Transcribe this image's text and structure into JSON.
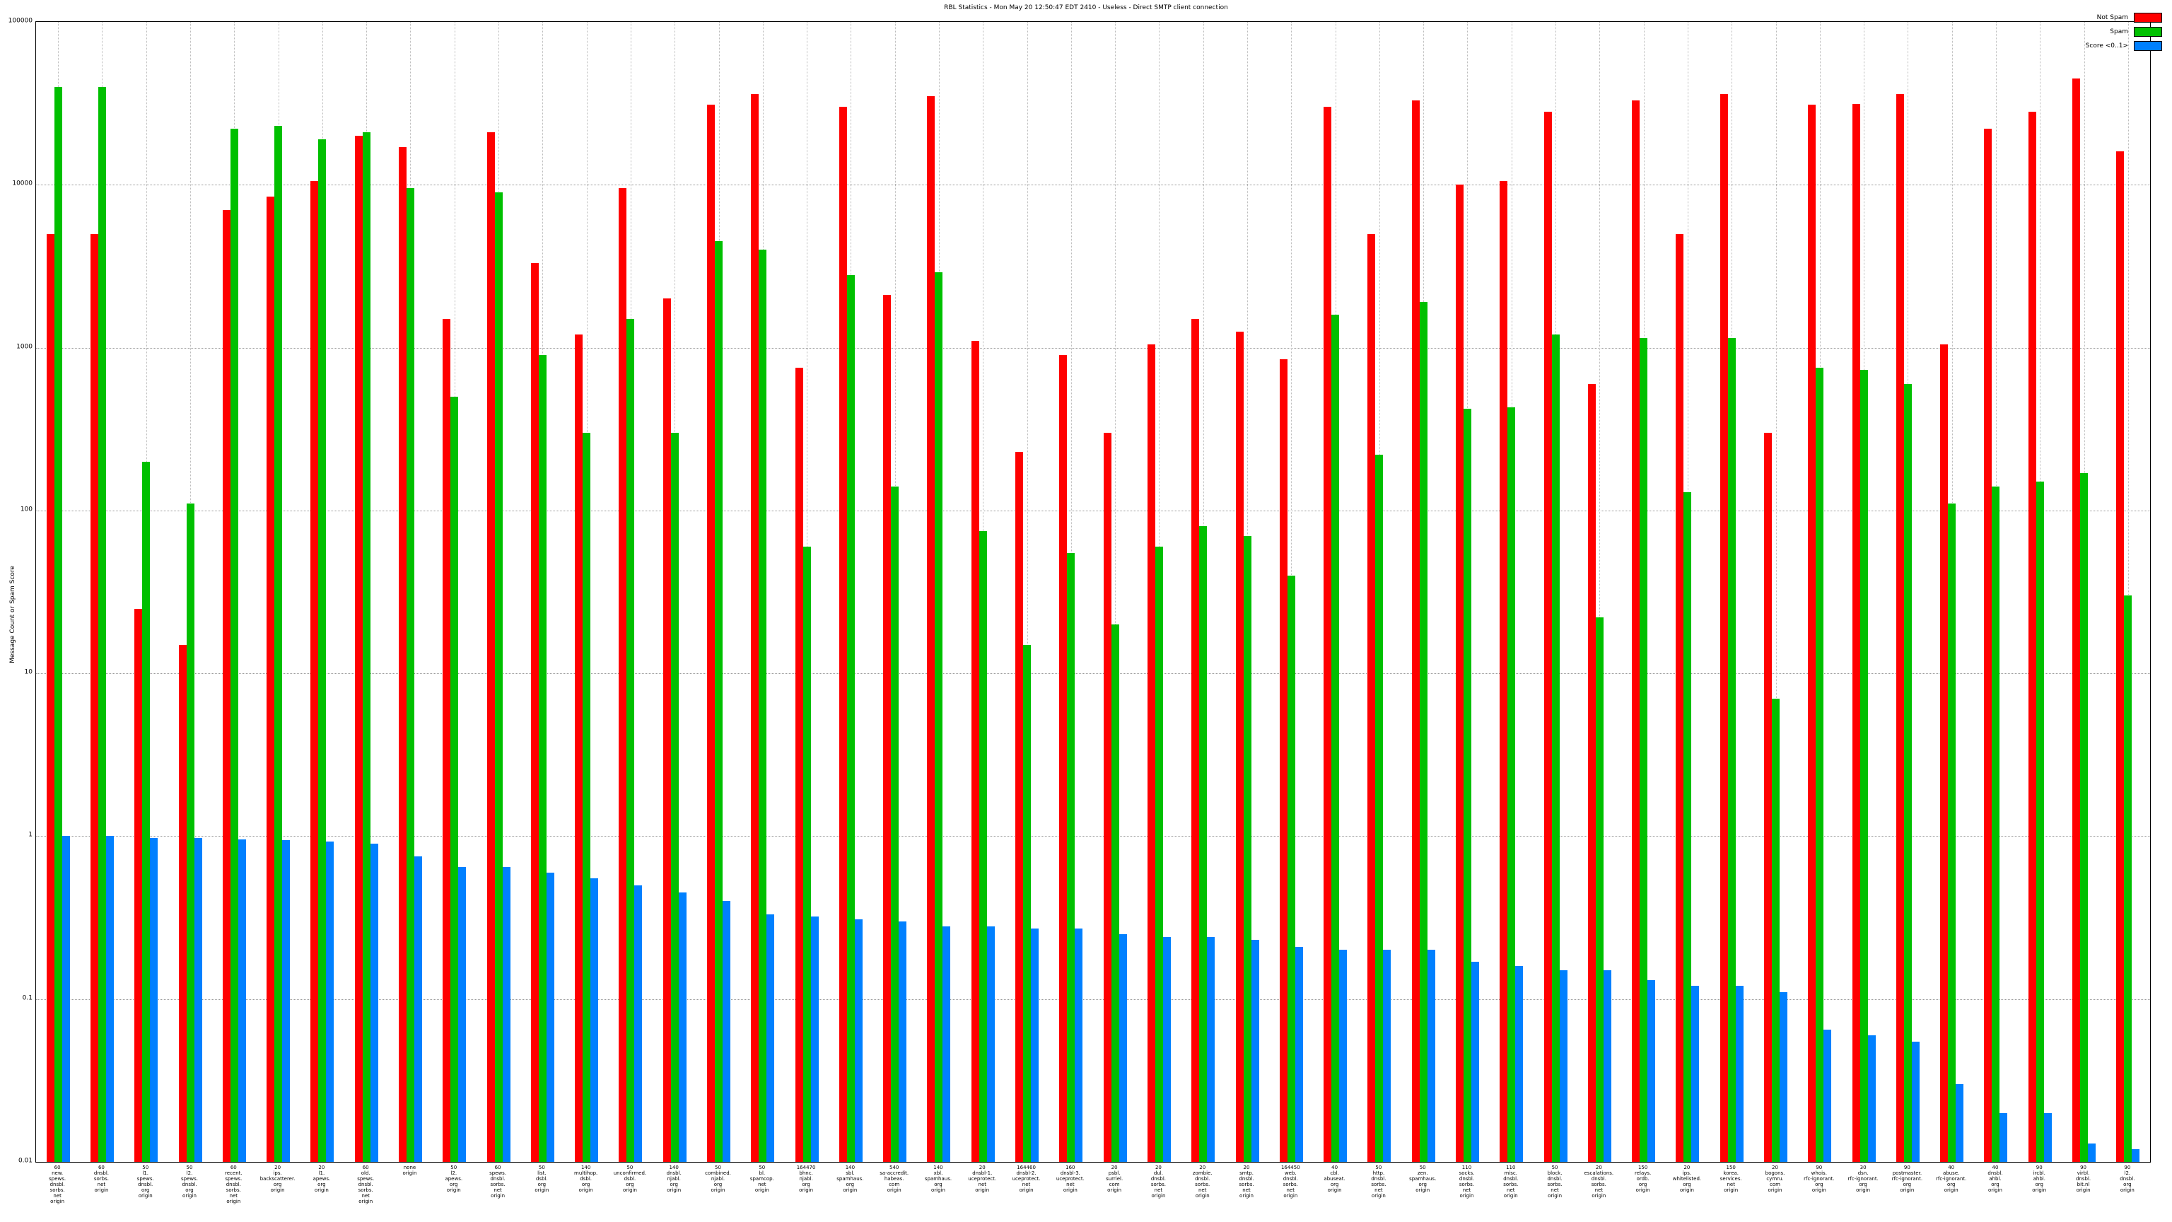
{
  "title": "RBL Statistics - Mon May 20 12:50:47 EDT 2410 - Useless - Direct SMTP client connection",
  "y_axis_label": "Message Count or Spam Score",
  "chart_data": {
    "type": "bar",
    "scale": "log",
    "grid": true,
    "legend_position": "top-right",
    "title": "RBL Statistics - Mon May 20 12:50:47 EDT 2410 - Useless - Direct SMTP client connection",
    "ylabel": "Message Count or Spam Score",
    "ylim": [
      0.01,
      100000
    ],
    "y_ticks": [
      "100000",
      "10000",
      "1000",
      "100",
      "10",
      "1",
      "0.1",
      "0.01"
    ],
    "categories": [
      [
        "60",
        "new.",
        "spews.",
        "dnsbl.",
        "sorbs.",
        "net",
        "origin"
      ],
      [
        "60",
        "dnsbl.",
        "sorbs.",
        "net",
        "origin"
      ],
      [
        "50",
        "l1.",
        "spews.",
        "dnsbl.",
        "org",
        "origin"
      ],
      [
        "50",
        "l2.",
        "spews.",
        "dnsbl.",
        "org",
        "origin"
      ],
      [
        "60",
        "recent.",
        "spews.",
        "dnsbl.",
        "sorbs.",
        "net",
        "origin"
      ],
      [
        "20",
        "ips.",
        "backscatterer.",
        "org",
        "origin"
      ],
      [
        "20",
        "l1.",
        "apews.",
        "org",
        "origin"
      ],
      [
        "60",
        "old.",
        "spews.",
        "dnsbl.",
        "sorbs.",
        "net",
        "origin"
      ],
      [
        "none",
        "origin"
      ],
      [
        "50",
        "l2.",
        "apews.",
        "org",
        "origin"
      ],
      [
        "60",
        "spews.",
        "dnsbl.",
        "sorbs.",
        "net",
        "origin"
      ],
      [
        "50",
        "list.",
        "dsbl.",
        "org",
        "origin"
      ],
      [
        "140",
        "multihop.",
        "dsbl.",
        "org",
        "origin"
      ],
      [
        "50",
        "unconfirmed.",
        "dsbl.",
        "org",
        "origin"
      ],
      [
        "140",
        "dnsbl.",
        "njabl.",
        "org",
        "origin"
      ],
      [
        "50",
        "combined.",
        "njabl.",
        "org",
        "origin"
      ],
      [
        "50",
        "bl.",
        "spamcop.",
        "net",
        "origin"
      ],
      [
        "164470",
        "bhnc.",
        "njabl.",
        "org",
        "origin"
      ],
      [
        "140",
        "sbl.",
        "spamhaus.",
        "org",
        "origin"
      ],
      [
        "540",
        "sa-accredit.",
        "habeas.",
        "com",
        "origin"
      ],
      [
        "140",
        "xbl.",
        "spamhaus.",
        "org",
        "origin"
      ],
      [
        "20",
        "dnsbl-1.",
        "uceprotect.",
        "net",
        "origin"
      ],
      [
        "164460",
        "dnsbl-2.",
        "uceprotect.",
        "net",
        "origin"
      ],
      [
        "160",
        "dnsbl-3.",
        "uceprotect.",
        "net",
        "origin"
      ],
      [
        "20",
        "psbl.",
        "surriel.",
        "com",
        "origin"
      ],
      [
        "20",
        "dul.",
        "dnsbl.",
        "sorbs.",
        "net",
        "origin"
      ],
      [
        "20",
        "zombie.",
        "dnsbl.",
        "sorbs.",
        "net",
        "origin"
      ],
      [
        "20",
        "smtp.",
        "dnsbl.",
        "sorbs.",
        "net",
        "origin"
      ],
      [
        "164450",
        "web.",
        "dnsbl.",
        "sorbs.",
        "net",
        "origin"
      ],
      [
        "40",
        "cbl.",
        "abuseat.",
        "org",
        "origin"
      ],
      [
        "50",
        "http.",
        "dnsbl.",
        "sorbs.",
        "net",
        "origin"
      ],
      [
        "50",
        "zen.",
        "spamhaus.",
        "org",
        "origin"
      ],
      [
        "110",
        "socks.",
        "dnsbl.",
        "sorbs.",
        "net",
        "origin"
      ],
      [
        "110",
        "misc.",
        "dnsbl.",
        "sorbs.",
        "net",
        "origin"
      ],
      [
        "50",
        "block.",
        "dnsbl.",
        "sorbs.",
        "net",
        "origin"
      ],
      [
        "20",
        "escalations.",
        "dnsbl.",
        "sorbs.",
        "net",
        "origin"
      ],
      [
        "150",
        "relays.",
        "ordb.",
        "org",
        "origin"
      ],
      [
        "20",
        "ips.",
        "whitelisted.",
        "org",
        "origin"
      ],
      [
        "150",
        "korea.",
        "services.",
        "net",
        "origin"
      ],
      [
        "20",
        "bogons.",
        "cymru.",
        "com",
        "origin"
      ],
      [
        "90",
        "whois.",
        "rfc-ignorant.",
        "org",
        "origin"
      ],
      [
        "30",
        "dsn.",
        "rfc-ignorant.",
        "org",
        "origin"
      ],
      [
        "90",
        "postmaster.",
        "rfc-ignorant.",
        "org",
        "origin"
      ],
      [
        "40",
        "abuse.",
        "rfc-ignorant.",
        "org",
        "origin"
      ],
      [
        "40",
        "dnsbl.",
        "ahbl.",
        "org",
        "origin"
      ],
      [
        "90",
        "ircbl.",
        "ahbl.",
        "org",
        "origin"
      ],
      [
        "90",
        "virbl.",
        "dnsbl.",
        "bit.nl",
        "origin"
      ],
      [
        "90",
        "l2.",
        "dnsbl.",
        "org",
        "origin"
      ]
    ],
    "series": [
      {
        "name": "Not Spam",
        "color": "#ff0000",
        "values": [
          5000,
          5000,
          25,
          15,
          7000,
          8500,
          10500,
          20000,
          17000,
          1500,
          21000,
          3300,
          1200,
          9500,
          2000,
          31000,
          36000,
          750,
          30000,
          2100,
          35000,
          1100,
          230,
          900,
          300,
          1050,
          1500,
          1250,
          850,
          30000,
          5000,
          33000,
          10000,
          10500,
          28000,
          600,
          33000,
          5000,
          36000,
          300,
          31000,
          31500,
          36000,
          1050,
          22000,
          28000,
          45000,
          16000
        ]
      },
      {
        "name": "Spam",
        "color": "#00c000",
        "values": [
          40000,
          40000,
          200,
          110,
          22000,
          23000,
          19000,
          21000,
          9500,
          500,
          9000,
          900,
          300,
          1500,
          300,
          4500,
          4000,
          60,
          2800,
          140,
          2900,
          75,
          15,
          55,
          20,
          60,
          80,
          70,
          40,
          1600,
          220,
          1900,
          420,
          430,
          1200,
          22,
          1150,
          130,
          1150,
          7,
          750,
          730,
          600,
          110,
          140,
          150,
          170,
          30
        ]
      },
      {
        "name": "Score <0..1>",
        "color": "#0080ff",
        "values": [
          1.0,
          1.0,
          0.97,
          0.97,
          0.96,
          0.95,
          0.93,
          0.9,
          0.75,
          0.65,
          0.65,
          0.6,
          0.55,
          0.5,
          0.45,
          0.4,
          0.33,
          0.32,
          0.31,
          0.3,
          0.28,
          0.28,
          0.27,
          0.27,
          0.25,
          0.24,
          0.24,
          0.23,
          0.21,
          0.2,
          0.2,
          0.2,
          0.17,
          0.16,
          0.15,
          0.15,
          0.13,
          0.12,
          0.12,
          0.11,
          0.065,
          0.06,
          0.055,
          0.03,
          0.02,
          0.02,
          0.013,
          0.012
        ]
      }
    ]
  }
}
